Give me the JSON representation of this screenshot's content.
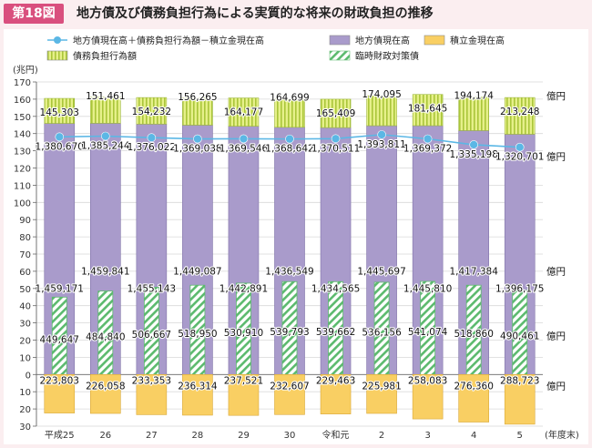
{
  "figure": {
    "label": "第18図",
    "title": "地方債及び債務負担行為による実質的な将来の財政負担の推移"
  },
  "legend": {
    "items": [
      {
        "key": "net",
        "label": "地方債現在高＋債務負担行為額－積立金現在高",
        "kind": "line",
        "color": "#5bb7e5"
      },
      {
        "key": "debt",
        "label": "地方債現在高",
        "kind": "box",
        "color": "#a99bcb"
      },
      {
        "key": "fund",
        "label": "積立金現在高",
        "kind": "box",
        "color": "#f9cf63"
      },
      {
        "key": "obl",
        "label": "債務負担行為額",
        "kind": "hatch-yellow",
        "color": "#d8e86a"
      },
      {
        "key": "special",
        "label": "臨時財政対策債",
        "kind": "hatch-green",
        "color": "#6cc07a"
      }
    ]
  },
  "chart_data": {
    "type": "bar",
    "categories": [
      "平成25",
      "26",
      "27",
      "28",
      "29",
      "30",
      "令和元",
      "2",
      "3",
      "4",
      "5"
    ],
    "xlabel": "(年度末)",
    "ylabel": "(兆円)",
    "ylim": [
      -30,
      170
    ],
    "yticks": [
      -30,
      -20,
      -10,
      0,
      10,
      20,
      30,
      40,
      50,
      60,
      70,
      80,
      90,
      100,
      110,
      120,
      130,
      140,
      150,
      160,
      170
    ],
    "unit_suffix": "億円",
    "series": [
      {
        "key": "debt",
        "name": "地方債現在高",
        "values": [
          1459171,
          1459841,
          1455143,
          1449087,
          1442891,
          1436549,
          1434565,
          1445697,
          1445810,
          1417384,
          1396175
        ],
        "labels": [
          "1,459,171",
          "1,459,841",
          "1,455,143",
          "1,449,087",
          "1,442,891",
          "1,436,549",
          "1,434,565",
          "1,445,697",
          "1,445,810",
          "1,417,384",
          "1,396,175"
        ]
      },
      {
        "key": "obl",
        "name": "債務負担行為額",
        "values": [
          145303,
          151461,
          154232,
          156265,
          164177,
          164699,
          165409,
          174095,
          181645,
          194174,
          213248
        ],
        "labels": [
          "145,303",
          "151,461",
          "154,232",
          "156,265",
          "164,177",
          "164,699",
          "165,409",
          "174,095",
          "181,645",
          "194,174",
          "213,248"
        ]
      },
      {
        "key": "special",
        "name": "臨時財政対策債",
        "values": [
          449647,
          484840,
          506667,
          518950,
          530910,
          539793,
          539662,
          536156,
          541074,
          518860,
          490461
        ],
        "labels": [
          "449,647",
          "484,840",
          "506,667",
          "518,950",
          "530,910",
          "539,793",
          "539,662",
          "536,156",
          "541,074",
          "518,860",
          "490,461"
        ]
      },
      {
        "key": "fund",
        "name": "積立金現在高",
        "values": [
          223803,
          226058,
          233353,
          236314,
          237521,
          232607,
          229463,
          225981,
          258083,
          276360,
          288723
        ],
        "labels": [
          "223,803",
          "226,058",
          "233,353",
          "236,314",
          "237,521",
          "232,607",
          "229,463",
          "225,981",
          "258,083",
          "276,360",
          "288,723"
        ]
      },
      {
        "key": "net",
        "name": "地方債現在高＋債務負担行為額－積立金現在高",
        "values": [
          1380670,
          1385244,
          1376022,
          1369038,
          1369546,
          1368642,
          1370511,
          1393811,
          1369372,
          1335198,
          1320701
        ],
        "labels": [
          "1,380,670",
          "1,385,244",
          "1,376,022",
          "1,369,038",
          "1,369,546",
          "1,368,642",
          "1,370,511",
          "1,393,811",
          "1,369,372",
          "1,335,198",
          "1,320,701"
        ]
      }
    ]
  }
}
